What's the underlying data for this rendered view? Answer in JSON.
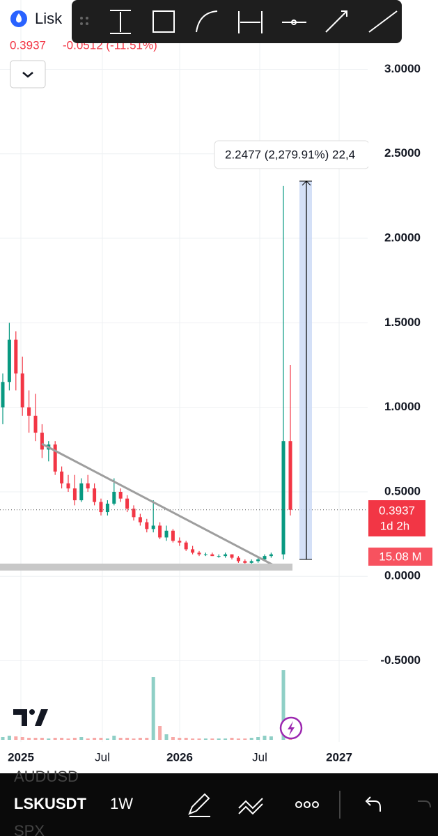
{
  "header": {
    "symbol": "Lisk",
    "price": "0.3937",
    "change": "-0.0512 (-11.51%)"
  },
  "chart_data": {
    "type": "candlestick",
    "open": [
      1.0,
      1.15,
      1.4,
      1.2,
      1.0,
      0.95,
      0.85,
      0.75,
      0.78,
      0.62,
      0.55,
      0.52,
      0.45,
      0.55,
      0.52,
      0.44,
      0.38,
      0.43,
      0.5,
      0.46,
      0.4,
      0.35,
      0.32,
      0.28,
      0.3,
      0.23,
      0.27,
      0.21,
      0.2,
      0.16,
      0.14,
      0.13,
      0.13,
      0.12,
      0.12,
      0.13,
      0.11,
      0.09,
      0.08,
      0.09,
      0.1,
      0.12,
      0.13,
      0.8
    ],
    "high": [
      1.2,
      1.5,
      1.45,
      1.3,
      1.1,
      1.08,
      0.9,
      0.8,
      0.8,
      0.65,
      0.6,
      0.6,
      0.58,
      0.6,
      0.55,
      0.46,
      0.45,
      0.58,
      0.52,
      0.48,
      0.42,
      0.37,
      0.34,
      0.45,
      0.32,
      0.3,
      0.28,
      0.23,
      0.21,
      0.18,
      0.15,
      0.14,
      0.14,
      0.13,
      0.14,
      0.13,
      0.12,
      0.1,
      0.1,
      0.11,
      0.13,
      0.14,
      2.31,
      1.25
    ],
    "low": [
      0.9,
      1.1,
      1.1,
      0.95,
      0.85,
      0.8,
      0.7,
      0.68,
      0.6,
      0.52,
      0.5,
      0.42,
      0.44,
      0.5,
      0.42,
      0.36,
      0.36,
      0.42,
      0.44,
      0.38,
      0.33,
      0.3,
      0.26,
      0.26,
      0.22,
      0.21,
      0.2,
      0.18,
      0.15,
      0.13,
      0.12,
      0.12,
      0.12,
      0.11,
      0.11,
      0.1,
      0.08,
      0.07,
      0.07,
      0.08,
      0.09,
      0.11,
      0.1,
      0.36
    ],
    "close": [
      1.15,
      1.4,
      1.2,
      1.0,
      0.95,
      0.85,
      0.75,
      0.78,
      0.62,
      0.55,
      0.52,
      0.45,
      0.55,
      0.52,
      0.44,
      0.38,
      0.43,
      0.5,
      0.46,
      0.4,
      0.35,
      0.32,
      0.28,
      0.3,
      0.23,
      0.27,
      0.21,
      0.2,
      0.16,
      0.14,
      0.13,
      0.13,
      0.12,
      0.12,
      0.13,
      0.11,
      0.09,
      0.08,
      0.09,
      0.1,
      0.12,
      0.13,
      0.8,
      0.3937
    ],
    "volume": [
      4,
      6,
      5,
      4,
      3,
      3,
      3,
      2,
      3,
      3,
      2,
      3,
      4,
      2,
      3,
      3,
      2,
      6,
      3,
      3,
      2,
      3,
      3,
      90,
      20,
      8,
      4,
      3,
      3,
      2,
      2,
      2,
      2,
      2,
      2,
      3,
      2,
      2,
      3,
      4,
      6,
      5,
      100,
      15.08
    ],
    "ylim": [
      -0.98,
      3.41
    ],
    "yticks": [
      {
        "value": 3,
        "label": "3.0000"
      },
      {
        "value": 2.5,
        "label": "2.5000"
      },
      {
        "value": 2,
        "label": "2.0000"
      },
      {
        "value": 1.5,
        "label": "1.5000"
      },
      {
        "value": 1,
        "label": "1.0000"
      },
      {
        "value": 0.5,
        "label": "0.5000"
      },
      {
        "value": 0,
        "label": "0.0000"
      },
      {
        "value": -0.5,
        "label": "-0.5000"
      }
    ],
    "x_labels": [
      "2025",
      "Jul",
      "2026",
      "Jul",
      "2027"
    ],
    "last_price": 0.3937,
    "countdown": "1d 2h",
    "volume_label": "15.08 M",
    "measure_label": "2.2477 (2,279.91%) 22,4"
  },
  "bottom_bar": {
    "ghost_top": "AUDUSD",
    "symbol": "LSKUSDT",
    "interval": "1W",
    "ghost_bottom": "SPX"
  }
}
